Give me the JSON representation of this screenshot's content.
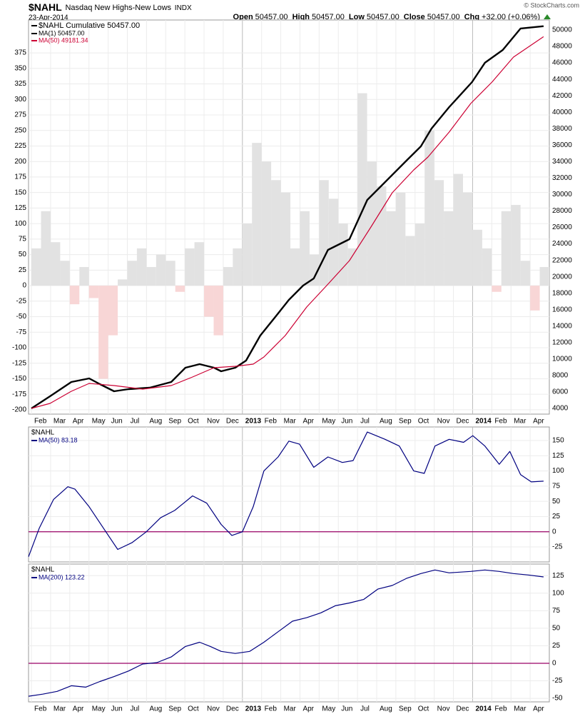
{
  "header": {
    "symbol": "$NAHL",
    "name": "Nasdaq New Highs-New Lows",
    "exchange": "INDX",
    "date": "23-Apr-2014",
    "credit": "© StockCharts.com",
    "quote": [
      {
        "label": "Open",
        "value": "50457.00"
      },
      {
        "label": "High",
        "value": "50457.00"
      },
      {
        "label": "Low",
        "value": "50457.00"
      },
      {
        "label": "Close",
        "value": "50457.00"
      },
      {
        "label": "Chg",
        "value": "+32.00 (+0.06%)"
      }
    ]
  },
  "chart_data": [
    {
      "type": "bar_line",
      "legend_title": "$NAHL Cumulative 50457.00",
      "legend_title_color": "#000000",
      "xlim": [
        -0.15,
        27.0
      ],
      "xticks": [
        {
          "value": 0,
          "label": "Feb"
        },
        {
          "value": 1,
          "label": "Mar"
        },
        {
          "value": 2,
          "label": "Apr"
        },
        {
          "value": 3,
          "label": "May"
        },
        {
          "value": 4,
          "label": "Jun"
        },
        {
          "value": 5,
          "label": "Jul"
        },
        {
          "value": 6,
          "label": "Aug"
        },
        {
          "value": 7,
          "label": "Sep"
        },
        {
          "value": 8,
          "label": "Oct"
        },
        {
          "value": 9,
          "label": "Nov"
        },
        {
          "value": 10,
          "label": "Dec"
        },
        {
          "value": 11,
          "label": "2013"
        },
        {
          "value": 12,
          "label": "Feb"
        },
        {
          "value": 13,
          "label": "Mar"
        },
        {
          "value": 14,
          "label": "Apr"
        },
        {
          "value": 15,
          "label": "May"
        },
        {
          "value": 16,
          "label": "Jun"
        },
        {
          "value": 17,
          "label": "Jul"
        },
        {
          "value": 18,
          "label": "Aug"
        },
        {
          "value": 19,
          "label": "Sep"
        },
        {
          "value": 20,
          "label": "Oct"
        },
        {
          "value": 21,
          "label": "Nov"
        },
        {
          "value": 22,
          "label": "Dec"
        },
        {
          "value": 23,
          "label": "2014"
        },
        {
          "value": 24,
          "label": "Feb"
        },
        {
          "value": 25,
          "label": "Mar"
        },
        {
          "value": 26,
          "label": "Apr"
        }
      ],
      "ylim": [
        -207,
        428
      ],
      "yticks": [
        -200,
        -175,
        -150,
        -125,
        -100,
        -75,
        -50,
        -25,
        0,
        25,
        50,
        75,
        100,
        125,
        150,
        175,
        200,
        225,
        250,
        275,
        300,
        325,
        350,
        375
      ],
      "y2lim": [
        3306,
        51215
      ],
      "y2ticks": [
        4000,
        6000,
        8000,
        10000,
        12000,
        14000,
        16000,
        18000,
        20000,
        22000,
        24000,
        26000,
        28000,
        30000,
        32000,
        34000,
        36000,
        38000,
        40000,
        42000,
        44000,
        46000,
        48000,
        50000
      ],
      "grid": true,
      "series": [
        {
          "kind": "bars",
          "color": "#e2e2e2",
          "negative_color": "#f8d6d6",
          "bar_width": 0.5,
          "x": [
            0,
            0.5,
            1,
            1.5,
            2,
            2.5,
            3,
            3.5,
            4,
            4.5,
            5,
            5.5,
            6,
            6.5,
            7,
            7.5,
            8,
            8.5,
            9,
            9.5,
            10,
            10.5,
            11,
            11.5,
            12,
            12.5,
            13,
            13.5,
            14,
            14.5,
            15,
            15.5,
            16,
            16.5,
            17,
            17.5,
            18,
            18.5,
            19,
            19.5,
            20,
            20.5,
            21,
            21.5,
            22,
            22.5,
            23,
            23.5,
            24,
            24.5,
            25,
            25.5,
            26,
            26.5
          ],
          "values": [
            60,
            120,
            70,
            40,
            -30,
            30,
            -20,
            -150,
            -80,
            10,
            40,
            60,
            30,
            50,
            40,
            -10,
            60,
            70,
            -50,
            -80,
            30,
            60,
            100,
            230,
            200,
            170,
            150,
            60,
            120,
            50,
            170,
            140,
            100,
            60,
            310,
            200,
            160,
            120,
            150,
            80,
            100,
            250,
            170,
            120,
            180,
            150,
            90,
            60,
            -10,
            120,
            130,
            40,
            -40,
            30
          ]
        },
        {
          "kind": "line",
          "name": "MA(1) 50457.00",
          "color": "#000000",
          "width": 2.4,
          "axis": "y2",
          "x": [
            0,
            0.97,
            2.08,
            3.01,
            3.57,
            4.31,
            5.06,
            6.17,
            7.29,
            8.03,
            8.77,
            9.52,
            9.89,
            10.63,
            11.19,
            11.93,
            12.68,
            13.42,
            14.16,
            14.72,
            15.46,
            16.58,
            17.51,
            18.44,
            19.55,
            20.3,
            20.86,
            21.78,
            22.97,
            23.64,
            24.57,
            25.5,
            26.7
          ],
          "values": [
            4000,
            5476,
            7212,
            7646,
            6951,
            6083,
            6344,
            6517,
            7212,
            8948,
            9382,
            8948,
            8514,
            8948,
            9816,
            12854,
            15024,
            17194,
            18930,
            19798,
            23270,
            24572,
            29346,
            31516,
            34120,
            35856,
            38026,
            40630,
            43668,
            46012,
            47574,
            50178,
            50457
          ]
        },
        {
          "kind": "line",
          "name": "MA(50) 49181.34",
          "color": "#cc0033",
          "width": 1.2,
          "axis": "y2",
          "x": [
            0,
            0.97,
            2.08,
            3.01,
            4.31,
            5.8,
            7.29,
            8.4,
            9.52,
            10.63,
            11.56,
            12.12,
            13.23,
            14.35,
            15.46,
            16.58,
            17.7,
            18.81,
            19.93,
            20.67,
            21.78,
            22.9,
            24.01,
            25.13,
            26.7
          ],
          "values": [
            4000,
            4608,
            6083,
            7038,
            6778,
            6344,
            6778,
            7820,
            8948,
            9122,
            9382,
            10250,
            12854,
            16326,
            19104,
            21968,
            26047,
            30214,
            32992,
            34554,
            37592,
            41064,
            43668,
            46706,
            49181.34
          ]
        }
      ]
    },
    {
      "type": "line",
      "title": "$NAHL",
      "xlim": [
        -0.15,
        27.0
      ],
      "ylim": [
        -49.6,
        172.3
      ],
      "yticks": [
        -25,
        0,
        25,
        50,
        75,
        100,
        125,
        150
      ],
      "grid": true,
      "reference_line": {
        "value": 0,
        "color": "#990066"
      },
      "series": [
        {
          "kind": "line",
          "name": "MA(50) 83.18",
          "color": "#000080",
          "width": 1.2,
          "x": [
            -0.15,
            0.41,
            1.15,
            1.9,
            2.27,
            3.01,
            3.75,
            4.5,
            5.24,
            5.99,
            6.73,
            7.47,
            8.4,
            9.14,
            9.89,
            10.45,
            11.0,
            11.56,
            12.12,
            12.86,
            13.42,
            13.98,
            14.72,
            15.46,
            16.21,
            16.77,
            17.51,
            18.44,
            19.18,
            19.93,
            20.48,
            21.04,
            21.78,
            22.53,
            23.01,
            23.64,
            24.39,
            24.94,
            25.5,
            26.06,
            26.7
          ],
          "values": [
            -41,
            6,
            53,
            74,
            70,
            41,
            6,
            -29,
            -18,
            0,
            23,
            35,
            59,
            47,
            12,
            -6,
            0,
            41,
            100,
            123,
            149,
            144,
            106,
            123,
            114,
            117,
            164,
            152,
            141,
            100,
            96,
            141,
            152,
            147,
            158,
            141,
            111,
            132,
            94,
            82,
            83.18
          ]
        }
      ]
    },
    {
      "type": "line",
      "title": "$NAHL",
      "xlim": [
        -0.15,
        27.0
      ],
      "xticks": [
        {
          "value": 0,
          "label": "Feb"
        },
        {
          "value": 1,
          "label": "Mar"
        },
        {
          "value": 2,
          "label": "Apr"
        },
        {
          "value": 3,
          "label": "May"
        },
        {
          "value": 4,
          "label": "Jun"
        },
        {
          "value": 5,
          "label": "Jul"
        },
        {
          "value": 6,
          "label": "Aug"
        },
        {
          "value": 7,
          "label": "Sep"
        },
        {
          "value": 8,
          "label": "Oct"
        },
        {
          "value": 9,
          "label": "Nov"
        },
        {
          "value": 10,
          "label": "Dec"
        },
        {
          "value": 11,
          "label": "2013"
        },
        {
          "value": 12,
          "label": "Feb"
        },
        {
          "value": 13,
          "label": "Mar"
        },
        {
          "value": 14,
          "label": "Apr"
        },
        {
          "value": 15,
          "label": "May"
        },
        {
          "value": 16,
          "label": "Jun"
        },
        {
          "value": 17,
          "label": "Jul"
        },
        {
          "value": 18,
          "label": "Aug"
        },
        {
          "value": 19,
          "label": "Sep"
        },
        {
          "value": 20,
          "label": "Oct"
        },
        {
          "value": 21,
          "label": "Nov"
        },
        {
          "value": 22,
          "label": "Dec"
        },
        {
          "value": 23,
          "label": "2014"
        },
        {
          "value": 24,
          "label": "Feb"
        },
        {
          "value": 25,
          "label": "Mar"
        },
        {
          "value": 26,
          "label": "Apr"
        }
      ],
      "ylim": [
        -55,
        141.5
      ],
      "yticks": [
        -50,
        -25,
        0,
        25,
        50,
        75,
        100,
        125
      ],
      "grid": true,
      "reference_line": {
        "value": 0,
        "color": "#990066"
      },
      "series": [
        {
          "kind": "line",
          "name": "MA(200) 123.22",
          "color": "#000080",
          "width": 1.2,
          "x": [
            -0.15,
            0.59,
            1.34,
            2.08,
            2.83,
            3.57,
            4.31,
            5.06,
            5.8,
            6.54,
            7.29,
            8.03,
            8.77,
            9.33,
            9.89,
            10.63,
            11.38,
            12.12,
            12.86,
            13.61,
            14.35,
            15.09,
            15.84,
            16.58,
            17.32,
            18.07,
            18.81,
            19.55,
            20.3,
            21.04,
            21.78,
            22.9,
            23.64,
            24.39,
            25.13,
            25.87,
            26.7
          ],
          "values": [
            -47,
            -44,
            -40,
            -32,
            -34,
            -26,
            -19,
            -11,
            -1,
            1,
            9,
            24,
            30,
            24,
            17,
            14,
            17,
            30,
            45,
            60,
            65,
            72,
            82,
            86,
            91,
            106,
            111,
            121,
            128,
            133,
            129,
            131,
            133,
            131,
            128,
            126,
            123.22
          ]
        }
      ]
    }
  ]
}
